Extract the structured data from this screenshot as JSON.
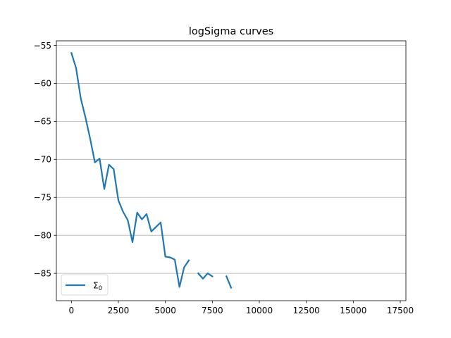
{
  "chart_data": {
    "type": "line",
    "title": "logSigma curves",
    "xlabel": "",
    "ylabel": "",
    "xlim": [
      -800,
      17800
    ],
    "ylim": [
      -88.6,
      -54.4
    ],
    "x_ticks": [
      0,
      2500,
      5000,
      7500,
      10000,
      12500,
      15000,
      17500
    ],
    "y_ticks": [
      -55,
      -60,
      -65,
      -70,
      -75,
      -80,
      -85
    ],
    "grid": "y-major",
    "legend_position": "lower-left",
    "series": [
      {
        "name": "Σ0",
        "color": "#1f77b4",
        "segments": [
          [
            [
              0,
              -56.0
            ],
            [
              250,
              -58.0
            ],
            [
              500,
              -62.0
            ],
            [
              750,
              -64.5
            ],
            [
              1000,
              -67.3
            ],
            [
              1250,
              -70.4
            ],
            [
              1500,
              -69.9
            ],
            [
              1750,
              -73.9
            ],
            [
              2000,
              -70.7
            ],
            [
              2250,
              -71.3
            ],
            [
              2500,
              -75.4
            ],
            [
              2750,
              -76.9
            ],
            [
              3000,
              -78.0
            ],
            [
              3250,
              -80.9
            ],
            [
              3500,
              -77.0
            ],
            [
              3750,
              -77.9
            ],
            [
              4000,
              -77.2
            ],
            [
              4250,
              -79.5
            ],
            [
              4500,
              -78.9
            ],
            [
              4750,
              -78.3
            ],
            [
              5000,
              -82.8
            ],
            [
              5250,
              -82.9
            ],
            [
              5500,
              -83.2
            ],
            [
              5750,
              -86.8
            ],
            [
              6000,
              -84.2
            ],
            [
              6250,
              -83.3
            ]
          ],
          [
            [
              6750,
              -85.0
            ],
            [
              7000,
              -85.7
            ],
            [
              7250,
              -85.0
            ],
            [
              7500,
              -85.4
            ]
          ],
          [
            [
              8250,
              -85.4
            ],
            [
              8500,
              -86.9
            ]
          ]
        ]
      }
    ]
  }
}
